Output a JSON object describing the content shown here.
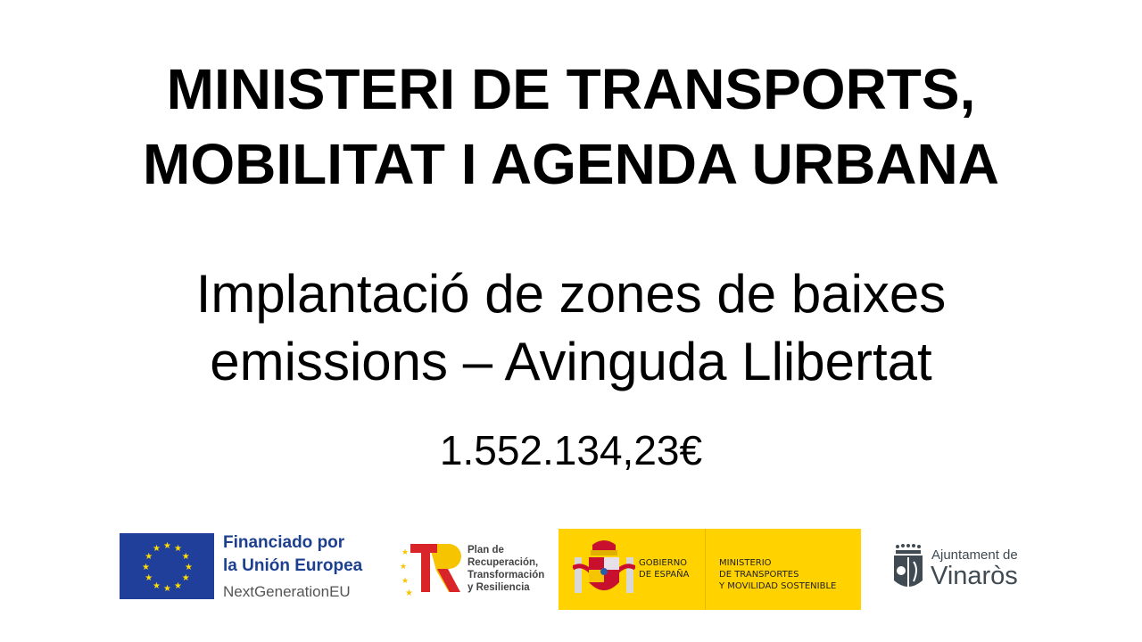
{
  "title": {
    "line1": "MINISTERI DE TRANSPORTS,",
    "line2": "MOBILITAT I AGENDA URBANA"
  },
  "subtitle": {
    "line1": "Implantació de zones de baixes",
    "line2": "emissions – Avinguda Llibertat"
  },
  "amount": "1.552.134,23€",
  "logos": {
    "eu": {
      "line1": "Financiado por",
      "line2": "la Unión Europea",
      "line3": "NextGenerationEU",
      "flag_color": "#1f3f9a",
      "star_color": "#ffdd00"
    },
    "prtr": {
      "line1": "Plan de",
      "line2": "Recuperación,",
      "line3": "Transformación",
      "line4": "y Resiliencia",
      "red": "#d9252a",
      "yellow": "#f6c400"
    },
    "gobierno": {
      "col1_line1": "GOBIERNO",
      "col1_line2": "DE ESPAÑA",
      "col2_line1": "MINISTERIO",
      "col2_line2": "DE TRANSPORTES",
      "col2_line3": "Y MOVILIDAD SOSTENIBLE",
      "bg": "#ffd200"
    },
    "vinaros": {
      "line1": "Ajuntament de",
      "line2": "Vinaròs",
      "color": "#3f4a52"
    }
  }
}
